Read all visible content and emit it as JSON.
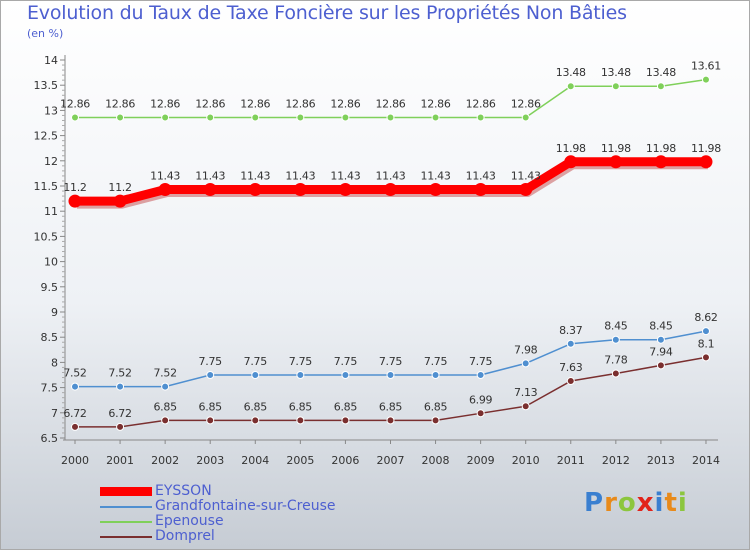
{
  "header": {
    "title": "Evolution du Taux de Taxe Foncière sur les Propriétés Non Bâties",
    "unit": "(en %)"
  },
  "logo": {
    "text": "Proxiti",
    "letters": [
      "P",
      "r",
      "o",
      "x",
      "i",
      "t",
      "i"
    ]
  },
  "chart_data": {
    "type": "line",
    "title": "Evolution du Taux de Taxe Foncière sur les Propriétés Non Bâties",
    "ylabel": "(en %)",
    "xlabel": "",
    "x": [
      "2000",
      "2001",
      "2002",
      "2003",
      "2004",
      "2005",
      "2006",
      "2007",
      "2008",
      "2009",
      "2010",
      "2011",
      "2012",
      "2013",
      "2014"
    ],
    "ylim": [
      6.5,
      14
    ],
    "yticks": [
      "6.5",
      "7",
      "7.5",
      "8",
      "8.5",
      "9",
      "9.5",
      "10",
      "10.5",
      "11",
      "11.5",
      "12",
      "12.5",
      "13",
      "13.5",
      "14"
    ],
    "grid": false,
    "legend_position": "bottom-left",
    "series": [
      {
        "name": "EYSSON",
        "color": "#ff0000",
        "values": [
          11.2,
          11.2,
          11.43,
          11.43,
          11.43,
          11.43,
          11.43,
          11.43,
          11.43,
          11.43,
          11.43,
          11.98,
          11.98,
          11.98,
          11.98
        ],
        "labels": [
          "11.2",
          "11.2",
          "11.43",
          "11.43",
          "11.43",
          "11.43",
          "11.43",
          "11.43",
          "11.43",
          "11.43",
          "11.43",
          "11.98",
          "11.98",
          "11.98",
          "11.98"
        ]
      },
      {
        "name": "Grandfontaine-sur-Creuse",
        "color": "#4f8fd0",
        "values": [
          7.52,
          7.52,
          7.52,
          7.75,
          7.75,
          7.75,
          7.75,
          7.75,
          7.75,
          7.75,
          7.98,
          8.37,
          8.45,
          8.45,
          8.62
        ],
        "labels": [
          "7.52",
          "7.52",
          "7.52",
          "7.75",
          "7.75",
          "7.75",
          "7.75",
          "7.75",
          "7.75",
          "7.75",
          "7.98",
          "8.37",
          "8.45",
          "8.45",
          "8.62"
        ]
      },
      {
        "name": "Epenouse",
        "color": "#7fd05a",
        "values": [
          12.86,
          12.86,
          12.86,
          12.86,
          12.86,
          12.86,
          12.86,
          12.86,
          12.86,
          12.86,
          12.86,
          13.48,
          13.48,
          13.48,
          13.61
        ],
        "labels": [
          "12.86",
          "12.86",
          "12.86",
          "12.86",
          "12.86",
          "12.86",
          "12.86",
          "12.86",
          "12.86",
          "12.86",
          "12.86",
          "13.48",
          "13.48",
          "13.48",
          "13.61"
        ]
      },
      {
        "name": "Domprel",
        "color": "#7a2f2f",
        "values": [
          6.72,
          6.72,
          6.85,
          6.85,
          6.85,
          6.85,
          6.85,
          6.85,
          6.85,
          6.99,
          7.13,
          7.63,
          7.78,
          7.94,
          8.1
        ],
        "labels": [
          "6.72",
          "6.72",
          "6.85",
          "6.85",
          "6.85",
          "6.85",
          "6.85",
          "6.85",
          "6.85",
          "6.99",
          "7.13",
          "7.63",
          "7.78",
          "7.94",
          "8.1"
        ]
      }
    ]
  }
}
